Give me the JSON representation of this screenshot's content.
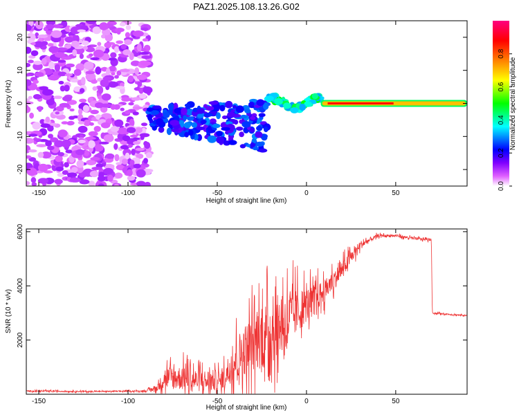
{
  "title": "PAZ1.2025.108.13.26.G02",
  "chart_data": [
    {
      "type": "heatmap",
      "title": "PAZ1.2025.108.13.26.G02",
      "xlabel": "Height of straight line (km)",
      "ylabel": "Frequency (Hz)",
      "xlim": [
        -157,
        90
      ],
      "ylim": [
        -25,
        25
      ],
      "x_ticks": [
        -150,
        -100,
        -50,
        0,
        50
      ],
      "y_ticks": [
        -20,
        -10,
        0,
        10,
        20
      ],
      "colorbar": {
        "label": "Normalized spectral amplitude",
        "range": [
          0,
          1
        ],
        "ticks": [
          "0.0",
          "0.2",
          "0.4",
          "0.6",
          "0.8"
        ],
        "colors": [
          "#ffffff",
          "#e060ff",
          "#8000ff",
          "#0000ff",
          "#00ffff",
          "#00ff00",
          "#ffff00",
          "#ff8000",
          "#ff0000",
          "#ff0080"
        ]
      },
      "regions": [
        {
          "x_range": [
            -157,
            -88
          ],
          "freq_range": [
            -25,
            25
          ],
          "amplitude": [
            0.02,
            0.12
          ]
        },
        {
          "x_range": [
            -88,
            -22
          ],
          "freq_range": [
            -12,
            4
          ],
          "amplitude": [
            0.15,
            0.3
          ]
        },
        {
          "x_range": [
            -22,
            8
          ],
          "freq_range": [
            -3,
            3
          ],
          "amplitude": [
            0.3,
            0.5
          ]
        },
        {
          "x_range": [
            8,
            90
          ],
          "freq_range": [
            -1,
            1
          ],
          "amplitude": [
            0.6,
            0.95
          ]
        }
      ]
    },
    {
      "type": "line",
      "xlabel": "Height of straight line (km)",
      "ylabel": "SNR (10 * v/v)",
      "xlim": [
        -157,
        90
      ],
      "ylim": [
        0,
        6100
      ],
      "x_ticks": [
        -150,
        -100,
        -50,
        0,
        50
      ],
      "y_ticks": [
        2000,
        4000,
        6000
      ],
      "series": [
        {
          "color": "#ee3333",
          "x": [
            -157,
            -120,
            -90,
            -83,
            -80,
            -70,
            -60,
            -50,
            -48,
            -40,
            -30,
            -20,
            -10,
            0,
            10,
            20,
            30,
            40,
            50,
            60,
            70,
            70.5,
            80,
            90
          ],
          "base": [
            120,
            100,
            120,
            250,
            600,
            600,
            500,
            500,
            450,
            1300,
            1900,
            2400,
            2800,
            3300,
            3800,
            4600,
            5500,
            5850,
            5850,
            5750,
            5700,
            3000,
            2950,
            2900
          ],
          "amp": [
            50,
            50,
            50,
            300,
            900,
            1000,
            900,
            900,
            700,
            1700,
            2500,
            2600,
            2300,
            1400,
            900,
            700,
            350,
            120,
            100,
            100,
            100,
            70,
            60,
            60
          ]
        }
      ]
    }
  ]
}
